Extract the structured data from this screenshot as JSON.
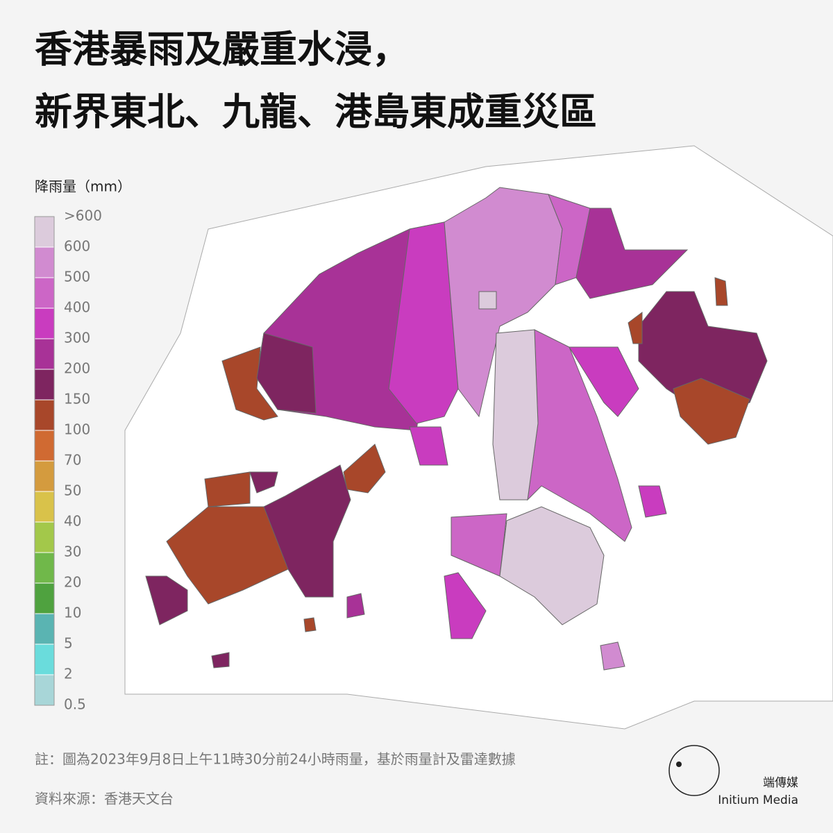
{
  "title": [
    "香港暴雨及嚴重水浸，",
    "新界東北、九龍、港島東成重災區"
  ],
  "legend": {
    "title": "降雨量（mm）",
    "labels": [
      ">600",
      "600",
      "500",
      "400",
      "300",
      "200",
      "150",
      "100",
      "70",
      "50",
      "40",
      "30",
      "20",
      "10",
      "5",
      "2",
      "0.5"
    ],
    "colors": [
      "#dccbdc",
      "#d18bd0",
      "#cc66c6",
      "#c93cbf",
      "#a83297",
      "#7e2560",
      "#a8472a",
      "#d06a32",
      "#d49b3e",
      "#d9c24a",
      "#a3c84a",
      "#70b84a",
      "#4fa23f",
      "#5ab4b2",
      "#6adcdc",
      "#a8d6d8"
    ]
  },
  "note": "註：圖為2023年9月8日上午11時30分前24小時雨量，基於雨量計及雷達數據",
  "source": "資料來源：香港天文台",
  "brand": {
    "zh": "端傳媒",
    "en": "Initium Media"
  }
}
